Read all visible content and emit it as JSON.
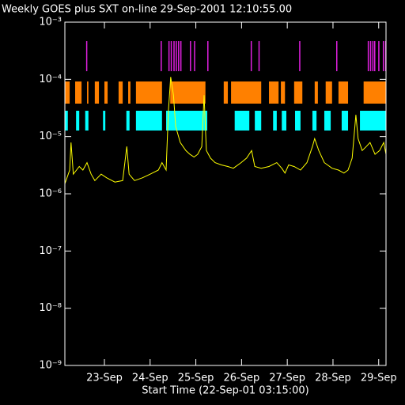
{
  "chart_data": {
    "type": "line",
    "title": "Weekly GOES plus SXT on-line 29-Sep-2001 12:10:55.00",
    "xlabel": "Start Time (22-Sep-01 03:15:00)",
    "log_y": true,
    "xlim": [
      22.135,
      29.16
    ],
    "xticks": [
      {
        "value": 23,
        "label": "23-Sep"
      },
      {
        "value": 24,
        "label": "24-Sep"
      },
      {
        "value": 25,
        "label": "25-Sep"
      },
      {
        "value": 26,
        "label": "26-Sep"
      },
      {
        "value": 27,
        "label": "27-Sep"
      },
      {
        "value": 28,
        "label": "28-Sep"
      },
      {
        "value": 29,
        "label": "29-Sep"
      }
    ],
    "ylim": [
      1e-09,
      0.001
    ],
    "yticks": [
      {
        "value": 1e-09,
        "label": "10⁻⁹"
      },
      {
        "value": 1e-08,
        "label": "10⁻⁸"
      },
      {
        "value": 1e-07,
        "label": "10⁻⁷"
      },
      {
        "value": 1e-06,
        "label": "10⁻⁶"
      },
      {
        "value": 1e-05,
        "label": "10⁻⁵"
      },
      {
        "value": 0.0001,
        "label": "10⁻⁴"
      },
      {
        "value": 0.001,
        "label": "10⁻³"
      }
    ],
    "series": [
      {
        "color": "#ffff00",
        "x": [
          22.135,
          22.24,
          22.27,
          22.32,
          22.45,
          22.53,
          22.62,
          22.71,
          22.79,
          22.93,
          23.05,
          23.23,
          23.4,
          23.49,
          23.54,
          23.66,
          23.83,
          24.0,
          24.18,
          24.26,
          24.35,
          24.4,
          24.45,
          24.51,
          24.56,
          24.66,
          24.78,
          24.87,
          24.96,
          25.04,
          25.13,
          25.18,
          25.23,
          25.32,
          25.42,
          25.56,
          25.7,
          25.82,
          25.99,
          26.11,
          26.22,
          26.29,
          26.43,
          26.6,
          26.77,
          26.88,
          26.95,
          27.03,
          27.15,
          27.29,
          27.43,
          27.55,
          27.6,
          27.69,
          27.81,
          27.98,
          28.12,
          28.24,
          28.33,
          28.42,
          28.5,
          28.55,
          28.64,
          28.73,
          28.81,
          28.92,
          29.02,
          29.11,
          29.16
        ],
        "values": [
          1.5e-06,
          2.6e-06,
          7.9e-06,
          2.2e-06,
          3e-06,
          2.6e-06,
          3.5e-06,
          2.2e-06,
          1.7e-06,
          2.2e-06,
          1.9e-06,
          1.6e-06,
          1.7e-06,
          6.7e-06,
          2.2e-06,
          1.7e-06,
          1.9e-06,
          2.2e-06,
          2.6e-06,
          3.5e-06,
          2.6e-06,
          2.8e-05,
          0.00011,
          5.3e-05,
          1.5e-05,
          7.9e-06,
          5.7e-06,
          4.9e-06,
          4.4e-06,
          4.9e-06,
          6.7e-06,
          5.3e-05,
          5.7e-06,
          4.2e-06,
          3.5e-06,
          3.2e-06,
          3e-06,
          2.8e-06,
          3.5e-06,
          4.2e-06,
          5.7e-06,
          3e-06,
          2.8e-06,
          3e-06,
          3.5e-06,
          2.8e-06,
          2.3e-06,
          3.2e-06,
          3e-06,
          2.6e-06,
          3.5e-06,
          6.7e-06,
          9.2e-06,
          5.7e-06,
          3.5e-06,
          2.8e-06,
          2.6e-06,
          2.3e-06,
          2.6e-06,
          4.2e-06,
          2.4e-05,
          9.2e-06,
          5.7e-06,
          6.7e-06,
          7.9e-06,
          4.9e-06,
          5.7e-06,
          7.9e-06,
          4.9e-06
        ]
      }
    ],
    "sxt_rows": [
      {
        "color": "#e020e0",
        "intervals": [
          [
            22.6,
            22.62
          ],
          [
            24.23,
            24.25
          ],
          [
            24.4,
            24.42
          ],
          [
            24.45,
            24.47
          ],
          [
            24.51,
            24.53
          ],
          [
            24.56,
            24.58
          ],
          [
            24.61,
            24.63
          ],
          [
            24.66,
            24.68
          ],
          [
            24.87,
            24.89
          ],
          [
            24.96,
            24.98
          ],
          [
            25.25,
            25.27
          ],
          [
            26.2,
            26.22
          ],
          [
            26.37,
            26.39
          ],
          [
            27.26,
            27.28
          ],
          [
            28.07,
            28.09
          ],
          [
            28.76,
            28.78
          ],
          [
            28.81,
            28.83
          ],
          [
            28.86,
            28.88
          ],
          [
            28.9,
            28.92
          ],
          [
            28.99,
            29.01
          ],
          [
            29.09,
            29.11
          ],
          [
            29.14,
            29.16
          ]
        ]
      },
      {
        "color": "#ff8000",
        "intervals": [
          [
            22.135,
            22.24
          ],
          [
            22.36,
            22.5
          ],
          [
            22.62,
            22.65
          ],
          [
            22.79,
            22.88
          ],
          [
            23.0,
            23.07
          ],
          [
            23.31,
            23.4
          ],
          [
            23.52,
            23.57
          ],
          [
            23.69,
            24.26
          ],
          [
            24.44,
            25.21
          ],
          [
            25.61,
            25.7
          ],
          [
            25.77,
            26.43
          ],
          [
            26.6,
            26.81
          ],
          [
            26.86,
            26.95
          ],
          [
            27.15,
            27.33
          ],
          [
            27.6,
            27.67
          ],
          [
            27.84,
            27.98
          ],
          [
            28.12,
            28.33
          ],
          [
            28.67,
            29.16
          ]
        ]
      },
      {
        "color": "#00ffff",
        "intervals": [
          [
            22.135,
            22.2
          ],
          [
            22.38,
            22.45
          ],
          [
            22.58,
            22.65
          ],
          [
            22.97,
            23.02
          ],
          [
            23.48,
            23.55
          ],
          [
            23.69,
            24.26
          ],
          [
            24.35,
            25.25
          ],
          [
            25.85,
            26.17
          ],
          [
            26.29,
            26.43
          ],
          [
            26.69,
            26.77
          ],
          [
            26.88,
            26.98
          ],
          [
            27.17,
            27.29
          ],
          [
            27.55,
            27.64
          ],
          [
            27.81,
            27.95
          ],
          [
            28.19,
            28.33
          ],
          [
            28.59,
            29.16
          ]
        ]
      }
    ]
  }
}
